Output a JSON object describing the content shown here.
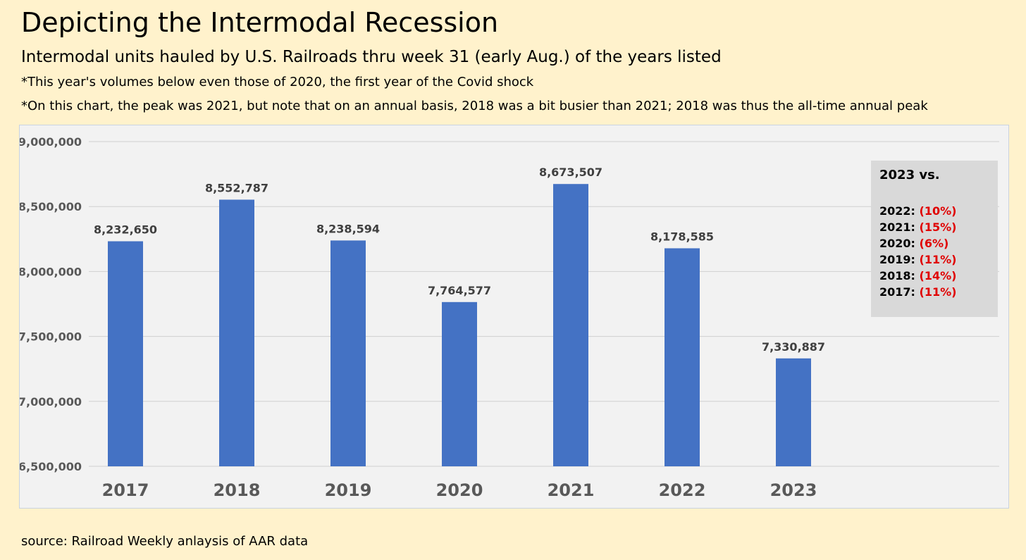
{
  "header": {
    "title": "Depicting the Intermodal Recession",
    "subtitle": "Intermodal units hauled by U.S. Railroads thru week 31 (early Aug.) of the years listed",
    "note1": "*This year's volumes below even those of 2020, the first year of the Covid shock",
    "note2": "*On this chart, the peak was 2021, but note that on an annual basis, 2018 was a bit busier than 2021; 2018 was thus the all-time annual peak"
  },
  "chart_data": {
    "type": "bar",
    "categories": [
      "2017",
      "2018",
      "2019",
      "2020",
      "2021",
      "2022",
      "2023"
    ],
    "values": [
      8232650,
      8552787,
      8238594,
      7764577,
      8673507,
      8178585,
      7330887
    ],
    "data_labels": [
      "8,232,650",
      "8,552,787",
      "8,238,594",
      "7,764,577",
      "8,673,507",
      "8,178,585",
      "7,330,887"
    ],
    "ylim": [
      6500000,
      9000000
    ],
    "yticks": [
      6500000,
      7000000,
      7500000,
      8000000,
      8500000,
      9000000
    ],
    "ytick_labels": [
      "6,500,000",
      "7,000,000",
      "7,500,000",
      "8,000,000",
      "8,500,000",
      "9,000,000"
    ],
    "grid": true,
    "bar_color": "#4472c4",
    "title": "",
    "xlabel": "",
    "ylabel": ""
  },
  "comparison": {
    "title": "2023 vs.",
    "rows": [
      {
        "year": "2022:",
        "pct": "(10%)"
      },
      {
        "year": "2021:",
        "pct": "(15%)"
      },
      {
        "year": "2020:",
        "pct": "(6%)"
      },
      {
        "year": "2019:",
        "pct": "(11%)"
      },
      {
        "year": "2018:",
        "pct": "(14%)"
      },
      {
        "year": "2017:",
        "pct": "(11%)"
      }
    ],
    "pct_color": "#e00000"
  },
  "footer": {
    "source": "source: Railroad Weekly anlaysis of AAR data"
  }
}
